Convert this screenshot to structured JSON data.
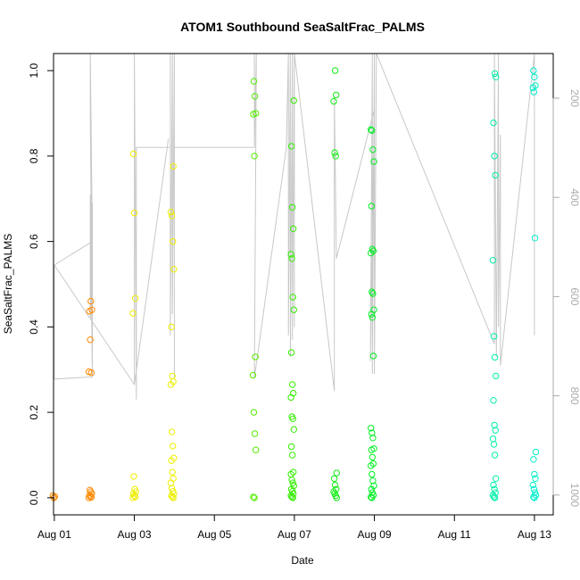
{
  "chart_data": {
    "type": "scatter",
    "title": "ATOM1 Southbound SeaSaltFrac_PALMS",
    "xlabel": "Date",
    "ylabel": "SeaSaltFrac_PALMS",
    "x_ticks": [
      "Aug 01",
      "Aug 03",
      "Aug 05",
      "Aug 07",
      "Aug 09",
      "Aug 11",
      "Aug 13"
    ],
    "x_tick_day": [
      1,
      3,
      5,
      7,
      9,
      11,
      13
    ],
    "xlim": [
      0.98,
      13.47
    ],
    "ylim": [
      -0.04,
      1.04
    ],
    "y_ticks": [
      0.0,
      0.2,
      0.4,
      0.6,
      0.8,
      1.0
    ],
    "y_tick_labels": [
      "0.0",
      "0.2",
      "0.4",
      "0.6",
      "0.8",
      "1.0"
    ],
    "right_axis": {
      "ticks": [
        200,
        400,
        600,
        800,
        1000
      ],
      "lim": [
        1040,
        110
      ],
      "color": "#aaaaaa",
      "series": "pressure (grey line)"
    },
    "colors": {
      "series_line": "#c8c8c8",
      "aug1": "#ff8800",
      "aug2": "#ff8800",
      "aug3": "#eeee00",
      "aug4": "#eeee00",
      "aug6": "#55ee00",
      "aug7": "#33ee00",
      "aug8": "#11ee11",
      "aug9": "#00ee22",
      "aug12": "#00eeaa",
      "aug13": "#00eecc"
    },
    "point_groups": [
      {
        "x": 1.0,
        "color": "#ff8800",
        "values": [
          0.005,
          0.0,
          0.003
        ]
      },
      {
        "x": 1.9,
        "color": "#ff8800",
        "values": [
          0.46,
          0.44,
          0.437,
          0.37,
          0.293,
          0.295,
          0.018,
          0.014,
          0.01,
          0.006,
          0.003,
          0.001,
          0.0
        ]
      },
      {
        "x": 3.0,
        "color": "#eeee00",
        "values": [
          0.805,
          0.667,
          0.467,
          0.432,
          0.05,
          0.02,
          0.014,
          0.01,
          0.005,
          0.002,
          0.0
        ]
      },
      {
        "x": 3.95,
        "color": "#eeee00",
        "values": [
          0.776,
          0.669,
          0.66,
          0.6,
          0.535,
          0.4,
          0.285,
          0.272,
          0.265,
          0.154,
          0.121,
          0.093,
          0.087,
          0.06,
          0.045,
          0.035,
          0.022,
          0.015,
          0.01,
          0.005,
          0.002,
          0.0
        ]
      },
      {
        "x": 6.0,
        "color": "#55ee00",
        "values": [
          0.975,
          0.94,
          0.9,
          0.898,
          0.8,
          0.33,
          0.287,
          0.2,
          0.15,
          0.112,
          0.002,
          0.0
        ]
      },
      {
        "x": 6.95,
        "color": "#33ee00",
        "values": [
          0.93,
          0.823,
          0.68,
          0.63,
          0.57,
          0.56,
          0.47,
          0.44,
          0.34,
          0.265,
          0.245,
          0.235,
          0.19,
          0.185,
          0.16,
          0.12,
          0.1,
          0.06,
          0.055,
          0.042,
          0.035,
          0.028,
          0.02,
          0.015,
          0.01,
          0.005,
          0.002,
          0.0
        ]
      },
      {
        "x": 8.02,
        "color": "#11ee11",
        "values": [
          1.0,
          0.943,
          0.928,
          0.808,
          0.8,
          0.058,
          0.045,
          0.03,
          0.02,
          0.014,
          0.01,
          0.005,
          0.0
        ]
      },
      {
        "x": 8.95,
        "color": "#00ee22",
        "values": [
          0.862,
          0.86,
          0.815,
          0.787,
          0.683,
          0.582,
          0.578,
          0.573,
          0.482,
          0.478,
          0.44,
          0.43,
          0.422,
          0.332,
          0.163,
          0.152,
          0.14,
          0.115,
          0.112,
          0.095,
          0.08,
          0.075,
          0.055,
          0.04,
          0.028,
          0.02,
          0.012,
          0.006,
          0.002,
          0.0
        ]
      },
      {
        "x": 12.0,
        "color": "#00eeaa",
        "values": [
          0.993,
          0.985,
          0.878,
          0.8,
          0.755,
          0.556,
          0.378,
          0.329,
          0.285,
          0.228,
          0.17,
          0.158,
          0.138,
          0.125,
          0.1,
          0.045,
          0.03,
          0.02,
          0.012,
          0.006,
          0.002,
          0.0
        ]
      },
      {
        "x": 13.0,
        "color": "#00eecc",
        "values": [
          1.0,
          0.985,
          0.965,
          0.96,
          0.95,
          0.608,
          0.107,
          0.09,
          0.055,
          0.045,
          0.03,
          0.02,
          0.012,
          0.006,
          0.002,
          0.0
        ]
      }
    ],
    "line_path": [
      [
        1.0,
        0.545
      ],
      [
        1.0,
        0.278
      ],
      [
        1.95,
        0.283
      ],
      [
        1.9,
        0.71
      ],
      [
        1.9,
        0.42
      ],
      [
        1.95,
        0.69
      ],
      [
        1.95,
        0.31
      ],
      [
        1.9,
        0.9
      ],
      [
        1.9,
        1.04
      ],
      [
        1.95,
        0.6
      ],
      [
        1.0,
        0.545
      ],
      [
        3.0,
        0.265
      ],
      [
        3.85,
        0.84
      ],
      [
        3.0,
        0.265
      ],
      [
        3.0,
        0.82
      ],
      [
        3.0,
        1.04
      ],
      [
        3.05,
        0.23
      ],
      [
        3.05,
        0.82
      ],
      [
        3.9,
        0.82
      ],
      [
        3.9,
        1.04
      ],
      [
        3.9,
        0.38
      ],
      [
        3.95,
        1.04
      ],
      [
        3.95,
        0.43
      ],
      [
        4.0,
        1.04
      ],
      [
        4.0,
        0.28
      ],
      [
        4.0,
        0.82
      ],
      [
        6.0,
        0.82
      ],
      [
        6.0,
        1.04
      ],
      [
        6.0,
        0.82
      ],
      [
        6.05,
        1.04
      ],
      [
        6.0,
        0.28
      ],
      [
        6.8,
        0.82
      ],
      [
        6.85,
        1.04
      ],
      [
        6.85,
        0.38
      ],
      [
        6.9,
        1.04
      ],
      [
        6.9,
        0.33
      ],
      [
        6.95,
        1.04
      ],
      [
        6.95,
        0.37
      ],
      [
        7.0,
        1.04
      ],
      [
        7.0,
        0.4
      ],
      [
        7.0,
        1.04
      ],
      [
        8.0,
        0.25
      ],
      [
        8.0,
        0.94
      ],
      [
        8.05,
        0.56
      ],
      [
        9.0,
        0.91
      ],
      [
        8.9,
        0.32
      ],
      [
        8.95,
        1.04
      ],
      [
        8.95,
        0.29
      ],
      [
        9.0,
        1.04
      ],
      [
        9.0,
        0.29
      ],
      [
        9.05,
        1.04
      ],
      [
        12.0,
        0.36
      ],
      [
        12.0,
        1.04
      ],
      [
        12.05,
        0.33
      ],
      [
        12.1,
        1.04
      ],
      [
        12.1,
        0.4
      ],
      [
        12.15,
        0.85
      ],
      [
        12.15,
        0.31
      ],
      [
        13.0,
        1.04
      ],
      [
        13.0,
        0.38
      ],
      [
        13.0,
        1.04
      ]
    ]
  }
}
